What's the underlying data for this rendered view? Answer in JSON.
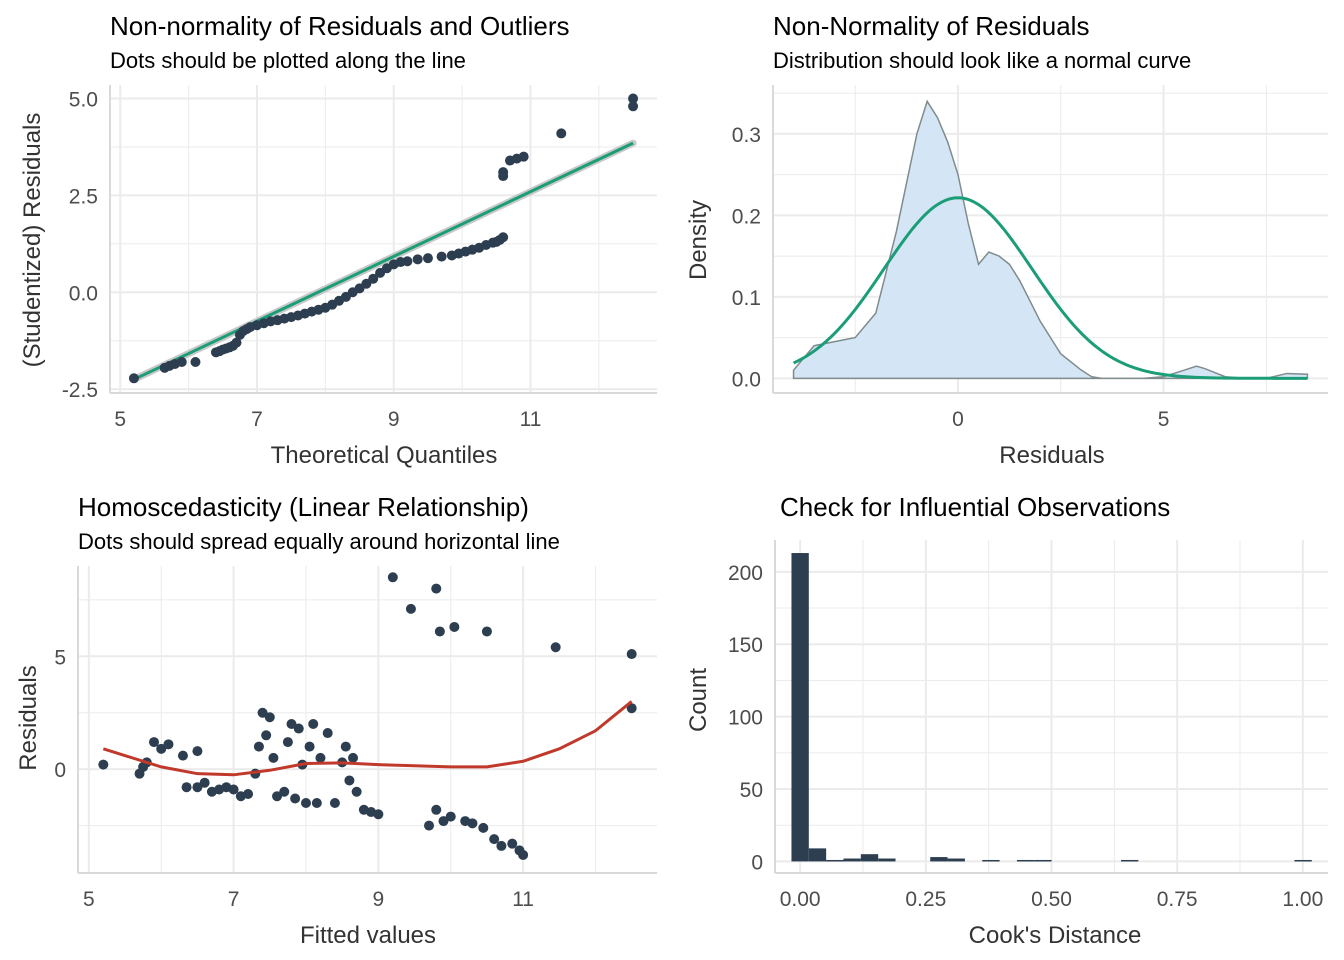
{
  "colors": {
    "points": "#2c3e50",
    "reference_line": "#1b9e77",
    "smooth_line": "#c0392b",
    "density_fill": "#d4e6f5",
    "density_stroke": "#7f8c8d",
    "bars": "#2c3e50",
    "grid": "#ebebeb",
    "axis_line": "#d9d9d9"
  },
  "chart_data": [
    {
      "id": "qq",
      "type": "scatter",
      "title": "Non-normality of Residuals and Outliers",
      "subtitle": "Dots should be plotted along the line",
      "xlabel": "Theoretical Quantiles",
      "ylabel": "(Studentized) Residuals",
      "xlim": [
        4.85,
        12.85
      ],
      "ylim": [
        -2.6,
        5.35
      ],
      "xticks": [
        5,
        7,
        9,
        11
      ],
      "xtick_labels": [
        "5",
        "7",
        "9",
        "11"
      ],
      "yticks": [
        -2.5,
        0,
        2.5,
        5
      ],
      "ytick_labels": [
        "-2.5",
        "0.0",
        "2.5",
        "5.0"
      ],
      "reference_line": {
        "x": [
          5.2,
          12.5
        ],
        "y": [
          -2.25,
          3.85
        ]
      },
      "points": [
        [
          5.2,
          -2.22
        ],
        [
          5.65,
          -1.95
        ],
        [
          5.72,
          -1.9
        ],
        [
          5.8,
          -1.85
        ],
        [
          5.9,
          -1.8
        ],
        [
          6.1,
          -1.8
        ],
        [
          6.4,
          -1.55
        ],
        [
          6.45,
          -1.52
        ],
        [
          6.5,
          -1.48
        ],
        [
          6.55,
          -1.45
        ],
        [
          6.6,
          -1.42
        ],
        [
          6.65,
          -1.38
        ],
        [
          6.7,
          -1.3
        ],
        [
          6.75,
          -1.1
        ],
        [
          6.8,
          -1.0
        ],
        [
          6.85,
          -0.95
        ],
        [
          6.9,
          -0.9
        ],
        [
          7.0,
          -0.85
        ],
        [
          7.1,
          -0.8
        ],
        [
          7.2,
          -0.75
        ],
        [
          7.3,
          -0.72
        ],
        [
          7.4,
          -0.68
        ],
        [
          7.5,
          -0.64
        ],
        [
          7.6,
          -0.6
        ],
        [
          7.7,
          -0.55
        ],
        [
          7.8,
          -0.5
        ],
        [
          7.9,
          -0.45
        ],
        [
          8.0,
          -0.4
        ],
        [
          8.1,
          -0.32
        ],
        [
          8.2,
          -0.22
        ],
        [
          8.3,
          -0.12
        ],
        [
          8.4,
          0.0
        ],
        [
          8.5,
          0.1
        ],
        [
          8.6,
          0.22
        ],
        [
          8.7,
          0.35
        ],
        [
          8.8,
          0.5
        ],
        [
          8.9,
          0.62
        ],
        [
          9.0,
          0.72
        ],
        [
          9.1,
          0.78
        ],
        [
          9.2,
          0.8
        ],
        [
          9.35,
          0.85
        ],
        [
          9.5,
          0.88
        ],
        [
          9.7,
          0.92
        ],
        [
          9.85,
          0.95
        ],
        [
          9.95,
          1.0
        ],
        [
          10.05,
          1.05
        ],
        [
          10.15,
          1.1
        ],
        [
          10.25,
          1.15
        ],
        [
          10.35,
          1.22
        ],
        [
          10.45,
          1.28
        ],
        [
          10.5,
          1.3
        ],
        [
          10.55,
          1.35
        ],
        [
          10.6,
          1.42
        ],
        [
          10.6,
          3.0
        ],
        [
          10.6,
          3.1
        ],
        [
          10.7,
          3.4
        ],
        [
          10.8,
          3.45
        ],
        [
          10.9,
          3.5
        ],
        [
          11.45,
          4.1
        ],
        [
          12.5,
          4.8
        ],
        [
          12.5,
          5.0
        ]
      ]
    },
    {
      "id": "density",
      "type": "area",
      "title": "Non-Normality of Residuals",
      "subtitle": "Distribution should look like a normal curve",
      "xlabel": "Residuals",
      "ylabel": "Density",
      "xlim": [
        -4.5,
        9.0
      ],
      "ylim": [
        -0.018,
        0.36
      ],
      "xticks": [
        0,
        5
      ],
      "xtick_labels": [
        "0",
        "5"
      ],
      "yticks": [
        0.0,
        0.1,
        0.2,
        0.3
      ],
      "ytick_labels": [
        "0.0",
        "0.1",
        "0.2",
        "0.3"
      ],
      "density": {
        "x": [
          -4.0,
          -3.5,
          -3.0,
          -2.5,
          -2.0,
          -1.5,
          -1.0,
          -0.75,
          -0.5,
          -0.25,
          0.0,
          0.25,
          0.5,
          0.75,
          1.0,
          1.25,
          1.5,
          2.0,
          2.5,
          3.0,
          3.25,
          3.5,
          4.0,
          4.5,
          5.0,
          5.5,
          5.8,
          6.0,
          6.2,
          6.5,
          7.0,
          7.5,
          8.0,
          8.5
        ],
        "y": [
          0.01,
          0.04,
          0.045,
          0.05,
          0.08,
          0.18,
          0.3,
          0.34,
          0.32,
          0.29,
          0.25,
          0.19,
          0.14,
          0.155,
          0.15,
          0.14,
          0.12,
          0.07,
          0.03,
          0.01,
          0.002,
          0.0,
          0.0,
          0.0,
          0.002,
          0.01,
          0.015,
          0.012,
          0.008,
          0.002,
          0.0,
          0.0,
          0.006,
          0.005
        ]
      },
      "normal_curve": {
        "mean": 0.0,
        "sd": 1.8
      }
    },
    {
      "id": "homoscedasticity",
      "type": "scatter",
      "title": "Homoscedasticity (Linear Relationship)",
      "subtitle": "Dots should spread equally around horizontal line",
      "xlabel": "Fitted values",
      "ylabel": "Residuals",
      "xlim": [
        4.85,
        12.85
      ],
      "ylim": [
        -4.6,
        9.0
      ],
      "xticks": [
        5,
        7,
        9,
        11
      ],
      "xtick_labels": [
        "5",
        "7",
        "9",
        "11"
      ],
      "yticks": [
        0,
        5
      ],
      "ytick_labels": [
        "0",
        "5"
      ],
      "smooth": {
        "x": [
          5.2,
          5.6,
          6.0,
          6.5,
          7.0,
          7.5,
          8.0,
          8.5,
          9.0,
          9.5,
          10.0,
          10.5,
          11.0,
          11.5,
          12.0,
          12.5
        ],
        "y": [
          0.9,
          0.5,
          0.1,
          -0.2,
          -0.25,
          -0.05,
          0.25,
          0.28,
          0.2,
          0.15,
          0.1,
          0.1,
          0.35,
          0.9,
          1.7,
          3.0
        ]
      },
      "points": [
        [
          5.2,
          0.2
        ],
        [
          5.7,
          -0.2
        ],
        [
          5.75,
          0.1
        ],
        [
          5.8,
          0.3
        ],
        [
          5.9,
          1.2
        ],
        [
          6.0,
          0.9
        ],
        [
          6.1,
          1.1
        ],
        [
          6.3,
          0.6
        ],
        [
          6.35,
          -0.8
        ],
        [
          6.5,
          -0.8
        ],
        [
          6.5,
          0.8
        ],
        [
          6.6,
          -0.6
        ],
        [
          6.7,
          -1.0
        ],
        [
          6.8,
          -0.9
        ],
        [
          6.9,
          -0.8
        ],
        [
          7.0,
          -0.9
        ],
        [
          7.1,
          -1.2
        ],
        [
          7.2,
          -1.1
        ],
        [
          7.3,
          -0.2
        ],
        [
          7.35,
          1.0
        ],
        [
          7.4,
          2.5
        ],
        [
          7.45,
          1.5
        ],
        [
          7.5,
          2.3
        ],
        [
          7.55,
          0.5
        ],
        [
          7.6,
          -1.2
        ],
        [
          7.7,
          -1.0
        ],
        [
          7.75,
          1.2
        ],
        [
          7.8,
          2.0
        ],
        [
          7.85,
          -1.3
        ],
        [
          7.9,
          1.8
        ],
        [
          7.95,
          0.2
        ],
        [
          8.0,
          -1.5
        ],
        [
          8.05,
          1.0
        ],
        [
          8.1,
          2.0
        ],
        [
          8.15,
          -1.5
        ],
        [
          8.2,
          0.5
        ],
        [
          8.3,
          1.6
        ],
        [
          8.4,
          -1.5
        ],
        [
          8.5,
          0.3
        ],
        [
          8.55,
          1.0
        ],
        [
          8.6,
          -0.5
        ],
        [
          8.65,
          0.5
        ],
        [
          8.7,
          -1.0
        ],
        [
          8.8,
          -1.8
        ],
        [
          8.9,
          -1.9
        ],
        [
          9.0,
          -2.0
        ],
        [
          9.2,
          8.5
        ],
        [
          9.45,
          7.1
        ],
        [
          9.8,
          8.0
        ],
        [
          9.85,
          6.1
        ],
        [
          10.05,
          6.3
        ],
        [
          10.5,
          6.1
        ],
        [
          9.7,
          -2.5
        ],
        [
          9.8,
          -1.8
        ],
        [
          9.9,
          -2.3
        ],
        [
          10.0,
          -2.1
        ],
        [
          10.2,
          -2.3
        ],
        [
          10.3,
          -2.4
        ],
        [
          10.45,
          -2.6
        ],
        [
          10.6,
          -3.1
        ],
        [
          10.7,
          -3.4
        ],
        [
          10.85,
          -3.3
        ],
        [
          10.95,
          -3.6
        ],
        [
          11.0,
          -3.8
        ],
        [
          11.45,
          5.4
        ],
        [
          12.5,
          5.1
        ],
        [
          12.5,
          2.7
        ]
      ]
    },
    {
      "id": "cooks",
      "type": "bar",
      "title": "Check for Influential Observations",
      "subtitle": "",
      "xlabel": "Cook's Distance",
      "ylabel": "Count",
      "xlim": [
        -0.05,
        1.05
      ],
      "ylim": [
        -8,
        222
      ],
      "xticks": [
        0.0,
        0.25,
        0.5,
        0.75,
        1.0
      ],
      "xtick_labels": [
        "0.00",
        "0.25",
        "0.50",
        "0.75",
        "1.00"
      ],
      "yticks": [
        0,
        50,
        100,
        150,
        200
      ],
      "ytick_labels": [
        "0",
        "50",
        "100",
        "150",
        "200"
      ],
      "bin_width": 0.0345,
      "bins": [
        {
          "x": 0.0,
          "count": 213
        },
        {
          "x": 0.0345,
          "count": 9
        },
        {
          "x": 0.069,
          "count": 1
        },
        {
          "x": 0.1035,
          "count": 2
        },
        {
          "x": 0.138,
          "count": 5
        },
        {
          "x": 0.1725,
          "count": 2
        },
        {
          "x": 0.276,
          "count": 3
        },
        {
          "x": 0.3105,
          "count": 2
        },
        {
          "x": 0.3795,
          "count": 1
        },
        {
          "x": 0.4485,
          "count": 1
        },
        {
          "x": 0.483,
          "count": 1
        },
        {
          "x": 0.6555,
          "count": 1
        },
        {
          "x": 1.0005,
          "count": 1
        }
      ]
    }
  ]
}
